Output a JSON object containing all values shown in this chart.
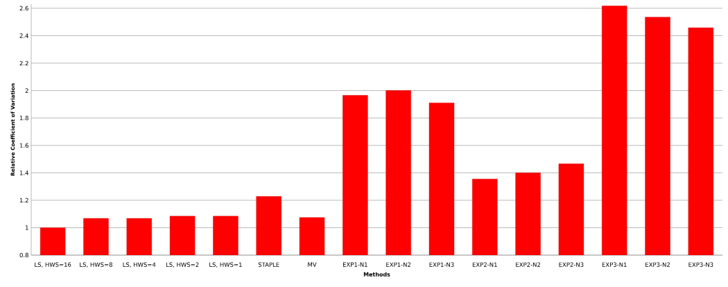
{
  "chart_data": {
    "type": "bar",
    "xlabel": "Methods",
    "ylabel": "Relative Coefficient of Variation",
    "categories": [
      "LS, HWS=16",
      "LS, HWS=8",
      "LS, HWS=4",
      "LS, HWS=2",
      "LS, HWS=1",
      "STAPLE",
      "MV",
      "EXP1-N1",
      "EXP1-N2",
      "EXP1-N3",
      "EXP2-N1",
      "EXP2-N2",
      "EXP2-N3",
      "EXP3-N1",
      "EXP3-N2",
      "EXP3-N3"
    ],
    "values": [
      1.0,
      1.068,
      1.068,
      1.084,
      1.084,
      1.228,
      1.074,
      1.965,
      2.0,
      1.91,
      1.355,
      1.4,
      1.466,
      2.617,
      2.535,
      2.458
    ],
    "color": "#ff0000",
    "ylim": [
      0.8,
      2.63
    ],
    "yticks": [
      0.8,
      1,
      1.2,
      1.4,
      1.6,
      1.8,
      2,
      2.2,
      2.4,
      2.6
    ],
    "grid": "y"
  }
}
